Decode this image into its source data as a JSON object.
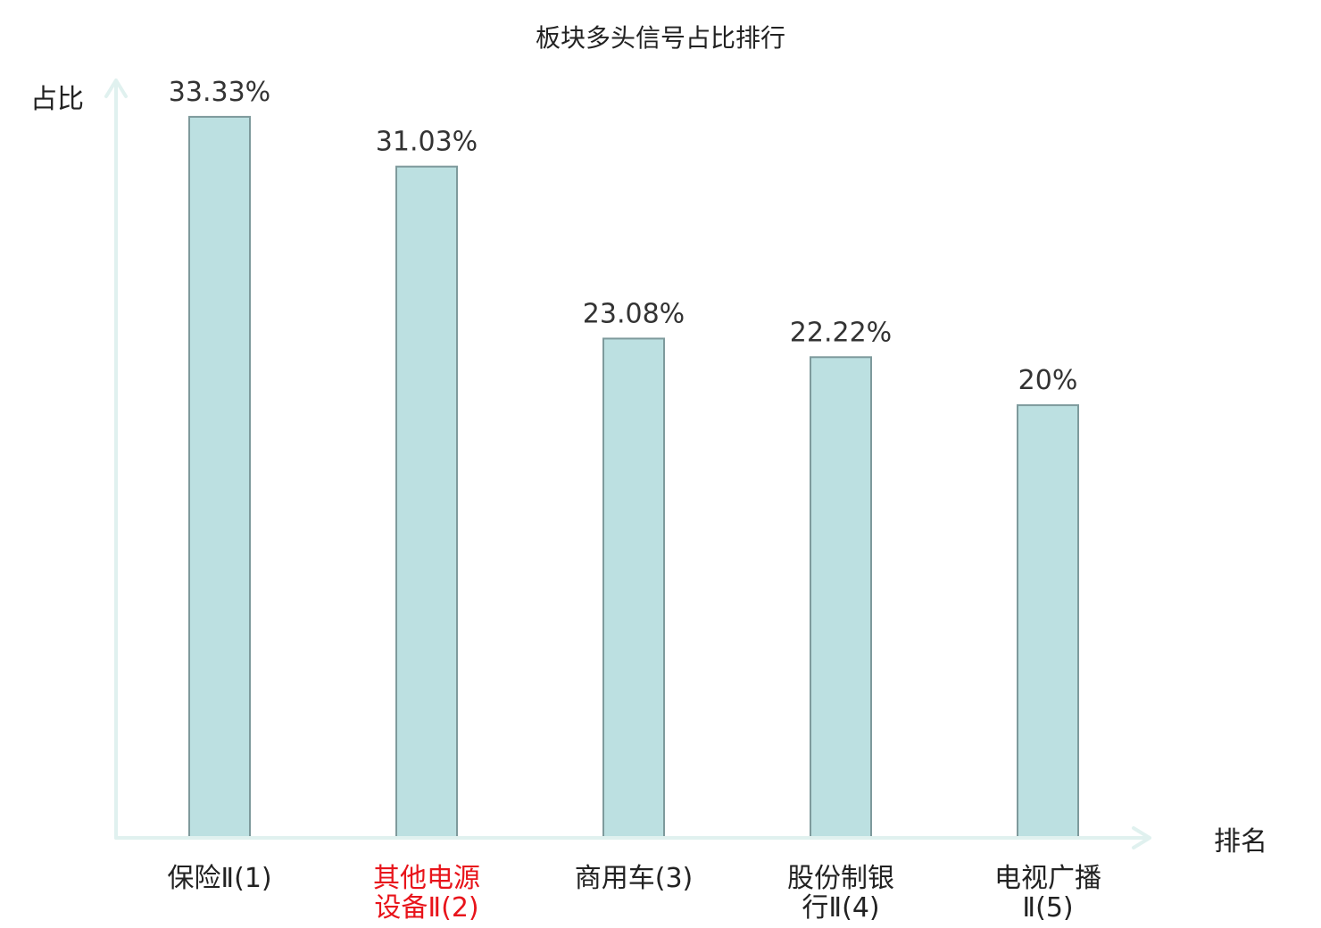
{
  "chart_data": {
    "type": "bar",
    "title": "板块多头信号占比排行",
    "xlabel": "排名",
    "ylabel": "占比",
    "categories": [
      [
        "保险Ⅱ(1)"
      ],
      [
        "其他电源",
        "设备Ⅱ(2)"
      ],
      [
        "商用车(3)"
      ],
      [
        "股份制银",
        "行Ⅱ(4)"
      ],
      [
        "电视广播",
        "Ⅱ(5)"
      ]
    ],
    "highlighted_category_index": 1,
    "values": [
      33.33,
      31.03,
      23.08,
      22.22,
      20
    ],
    "value_labels": [
      "33.33%",
      "31.03%",
      "23.08%",
      "22.22%",
      "20%"
    ],
    "ylim": [
      0,
      35
    ],
    "grid": false,
    "legend": "none"
  },
  "colors": {
    "bar_fill": "#bce0e1",
    "bar_stroke": "#7e9a9c",
    "axis": "#e0f1ef",
    "text": "#222222",
    "value_text": "#333333",
    "highlight_text": "#e8141b"
  }
}
